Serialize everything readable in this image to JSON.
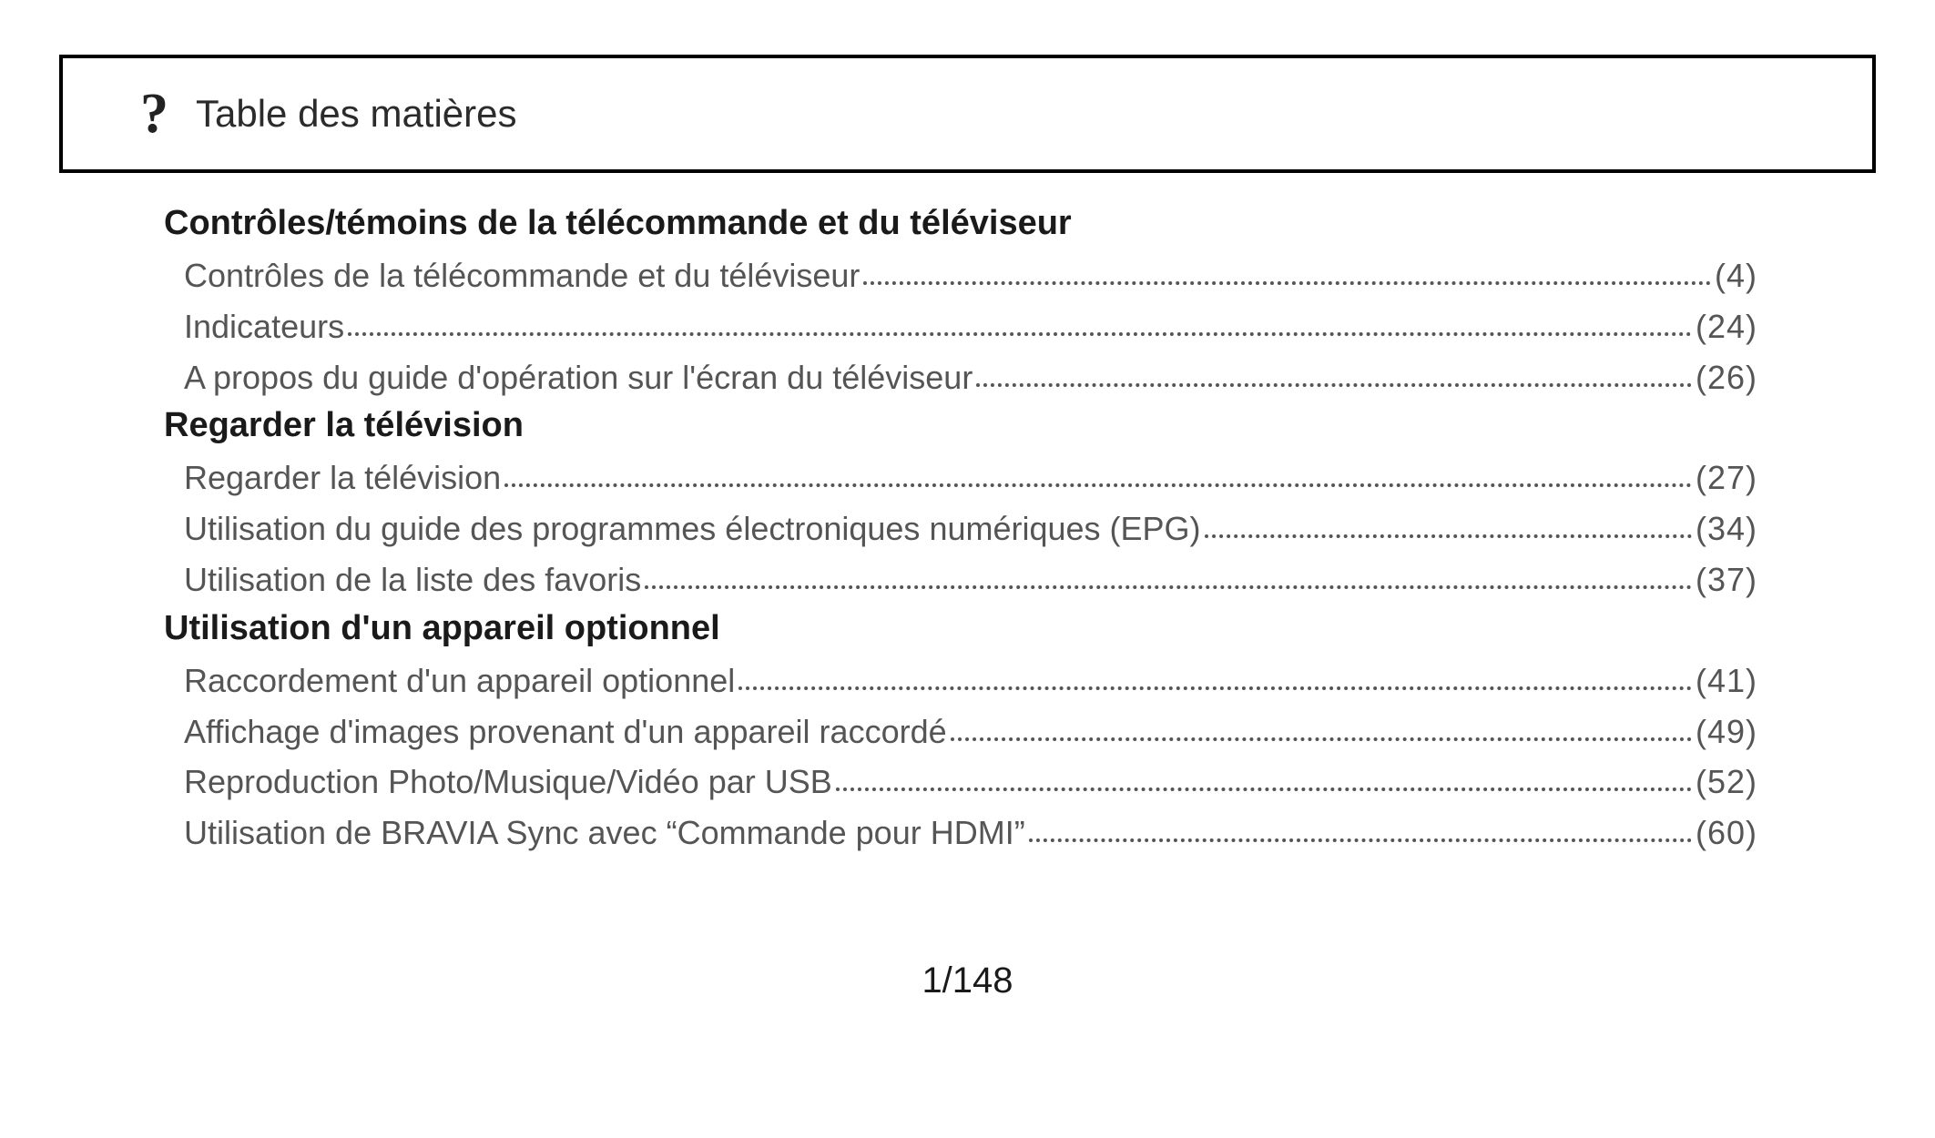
{
  "header": {
    "icon": "?",
    "title": "Table des matières"
  },
  "toc": {
    "sections": [
      {
        "title": "Contrôles/témoins de la télécommande et du téléviseur",
        "entries": [
          {
            "label": "Contrôles de la télécommande et du téléviseur",
            "page": "(4)"
          },
          {
            "label": "Indicateurs",
            "page": "(24)"
          },
          {
            "label": "A propos du guide d'opération sur l'écran du téléviseur",
            "page": "(26)"
          }
        ]
      },
      {
        "title": "Regarder la télévision",
        "entries": [
          {
            "label": "Regarder la télévision",
            "page": "(27)"
          },
          {
            "label": "Utilisation du guide des programmes électroniques numériques (EPG) ",
            "page": "(34)"
          },
          {
            "label": "Utilisation de la liste des favoris",
            "page": "(37)"
          }
        ]
      },
      {
        "title": "Utilisation d'un appareil optionnel",
        "entries": [
          {
            "label": "Raccordement d'un appareil optionnel",
            "page": "(41)"
          },
          {
            "label": "Affichage d'images provenant d'un appareil raccordé",
            "page": "(49)"
          },
          {
            "label": "Reproduction Photo/Musique/Vidéo par USB",
            "page": "(52)"
          },
          {
            "label": "Utilisation de BRAVIA Sync avec “Commande pour HDMI”",
            "page": "(60)"
          }
        ]
      }
    ]
  },
  "pagination": {
    "label": "1/148"
  },
  "styles": {
    "background_color": "#ffffff",
    "border_color": "#000000",
    "heading_color": "#1a1a1a",
    "entry_color": "#555555",
    "dot_color": "#555555",
    "header_font_size_pt": 32,
    "section_font_size_pt": 29,
    "entry_font_size_pt": 27
  }
}
